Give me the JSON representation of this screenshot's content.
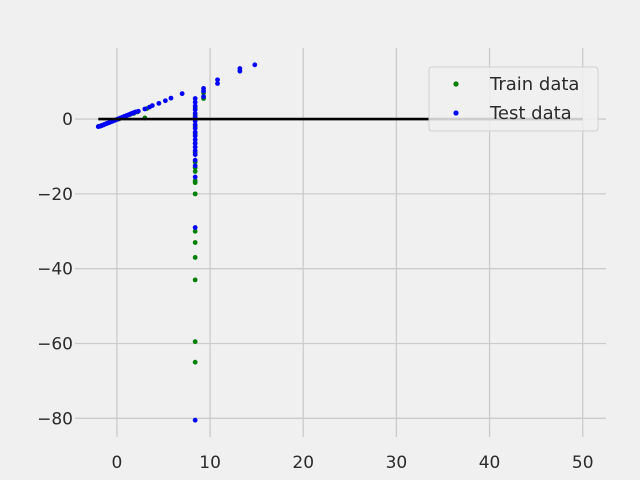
{
  "chart_data": {
    "type": "scatter",
    "title": "",
    "xlabel": "",
    "ylabel": "",
    "xlim": [
      -4.5,
      52.5
    ],
    "ylim": [
      -85,
      19
    ],
    "x_ticks": [
      0,
      10,
      20,
      30,
      40,
      50
    ],
    "y_ticks": [
      -80,
      -60,
      -40,
      -20,
      0
    ],
    "x_tick_labels": [
      "0",
      "10",
      "20",
      "30",
      "40",
      "50"
    ],
    "y_tick_labels": [
      "−80",
      "−60",
      "−40",
      "−20",
      "0"
    ],
    "grid": true,
    "legend_position": "top-right",
    "colors": {
      "background": "#f0f0f0",
      "grid": "#cbcbcb",
      "train": "#008000",
      "test": "#0000ff",
      "line": "#000000",
      "tick_text": "#2b2b2b"
    },
    "line": {
      "x": [
        -2,
        50
      ],
      "y": [
        0,
        0
      ]
    },
    "series": [
      {
        "name": "Train data",
        "points": [
          [
            -2.0,
            -2.0
          ],
          [
            -1.7,
            -1.8
          ],
          [
            -1.4,
            -1.5
          ],
          [
            -1.1,
            -1.2
          ],
          [
            -0.8,
            -0.9
          ],
          [
            -0.5,
            -0.6
          ],
          [
            -0.2,
            -0.3
          ],
          [
            0.2,
            0.0
          ],
          [
            0.6,
            0.4
          ],
          [
            1.0,
            0.8
          ],
          [
            1.4,
            1.2
          ],
          [
            1.8,
            1.5
          ],
          [
            2.2,
            1.9
          ],
          [
            3.0,
            0.3
          ],
          [
            3.2,
            2.8
          ],
          [
            8.4,
            -20.0
          ],
          [
            8.4,
            -30.0
          ],
          [
            8.4,
            -33.0
          ],
          [
            8.4,
            -37.0
          ],
          [
            8.4,
            -43.0
          ],
          [
            8.4,
            -59.5
          ],
          [
            8.4,
            -65.0
          ],
          [
            8.4,
            -14.0
          ],
          [
            8.4,
            -16.5
          ],
          [
            8.4,
            -17.0
          ],
          [
            8.4,
            -13.0
          ],
          [
            8.4,
            -11.5
          ],
          [
            8.4,
            -9.0
          ],
          [
            8.4,
            -6.5
          ],
          [
            8.4,
            -4.0
          ],
          [
            8.4,
            -2.0
          ],
          [
            8.4,
            1.0
          ],
          [
            8.4,
            3.0
          ],
          [
            9.3,
            5.5
          ],
          [
            9.3,
            7.0
          ]
        ]
      },
      {
        "name": "Test data",
        "points": [
          [
            -2.0,
            -2.0
          ],
          [
            -1.8,
            -1.9
          ],
          [
            -1.6,
            -1.7
          ],
          [
            -1.4,
            -1.5
          ],
          [
            -1.2,
            -1.3
          ],
          [
            -1.0,
            -1.1
          ],
          [
            -0.8,
            -0.9
          ],
          [
            -0.6,
            -0.7
          ],
          [
            -0.4,
            -0.5
          ],
          [
            -0.2,
            -0.3
          ],
          [
            0.0,
            -0.1
          ],
          [
            0.2,
            0.1
          ],
          [
            0.4,
            0.3
          ],
          [
            0.6,
            0.5
          ],
          [
            0.8,
            0.7
          ],
          [
            1.0,
            0.9
          ],
          [
            1.2,
            1.1
          ],
          [
            1.4,
            1.3
          ],
          [
            1.6,
            1.5
          ],
          [
            1.8,
            1.7
          ],
          [
            2.0,
            1.9
          ],
          [
            2.3,
            2.1
          ],
          [
            3.0,
            2.7
          ],
          [
            3.5,
            3.2
          ],
          [
            3.8,
            3.6
          ],
          [
            4.5,
            4.2
          ],
          [
            5.2,
            4.9
          ],
          [
            5.8,
            5.6
          ],
          [
            7.0,
            6.8
          ],
          [
            8.4,
            5.5
          ],
          [
            8.4,
            4.5
          ],
          [
            8.4,
            3.5
          ],
          [
            8.4,
            2.5
          ],
          [
            8.4,
            1.5
          ],
          [
            8.4,
            0.5
          ],
          [
            8.4,
            -0.5
          ],
          [
            8.4,
            -1.5
          ],
          [
            8.4,
            -2.5
          ],
          [
            8.4,
            -3.5
          ],
          [
            8.4,
            -4.5
          ],
          [
            8.4,
            -5.5
          ],
          [
            8.4,
            -6.5
          ],
          [
            8.4,
            -7.5
          ],
          [
            8.4,
            -8.5
          ],
          [
            8.4,
            -9.5
          ],
          [
            8.4,
            -11.0
          ],
          [
            8.4,
            -12.5
          ],
          [
            8.4,
            -15.5
          ],
          [
            8.4,
            -29.0
          ],
          [
            8.4,
            -80.5
          ],
          [
            9.3,
            6.0
          ],
          [
            9.3,
            7.5
          ],
          [
            9.3,
            8.2
          ],
          [
            10.8,
            9.5
          ],
          [
            10.8,
            10.5
          ],
          [
            13.2,
            12.8
          ],
          [
            13.2,
            13.5
          ],
          [
            14.8,
            14.5
          ]
        ]
      }
    ]
  }
}
